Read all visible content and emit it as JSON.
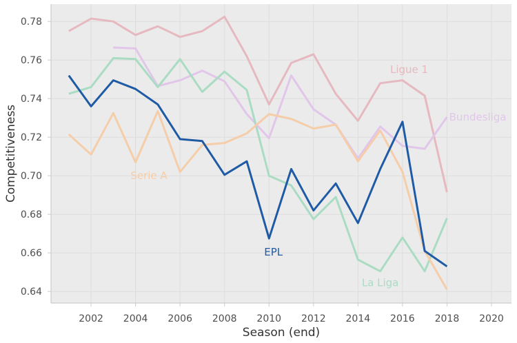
{
  "chart_data": {
    "type": "line",
    "xlabel": "Season (end)",
    "ylabel": "Competitiveness",
    "xlim": [
      2000.2,
      2020.9
    ],
    "ylim": [
      0.634,
      0.789
    ],
    "xticks": [
      2002,
      2004,
      2006,
      2008,
      2010,
      2012,
      2014,
      2016,
      2018,
      2020
    ],
    "yticks": [
      0.64,
      0.66,
      0.68,
      0.7,
      0.72,
      0.74,
      0.76,
      0.78
    ],
    "grid": true,
    "legend": "none",
    "series": [
      {
        "name": "Ligue 1",
        "color": "#e6b8bf",
        "x": [
          2001,
          2002,
          2003,
          2004,
          2005,
          2006,
          2007,
          2008,
          2009,
          2010,
          2011,
          2012,
          2013,
          2014,
          2015,
          2016,
          2017,
          2018
        ],
        "values": [
          0.775,
          0.7815,
          0.78,
          0.773,
          0.7775,
          0.772,
          0.775,
          0.7825,
          0.762,
          0.737,
          0.7585,
          0.763,
          0.7425,
          0.7285,
          0.748,
          0.7495,
          0.7415,
          0.6915
        ],
        "label_x": 2016.3,
        "label_y": 0.755
      },
      {
        "name": "Bundesliga",
        "color": "#e1c6ea",
        "x": [
          2003,
          2004,
          2005,
          2006,
          2007,
          2008,
          2009,
          2010,
          2011,
          2012,
          2013,
          2014,
          2015,
          2016,
          2017,
          2018
        ],
        "values": [
          0.7665,
          0.766,
          0.7465,
          0.7495,
          0.7545,
          0.749,
          0.732,
          0.7195,
          0.752,
          0.7345,
          0.7265,
          0.709,
          0.7255,
          0.7155,
          0.714,
          0.7305
        ],
        "label_x": 2018.1,
        "label_y": 0.7305
      },
      {
        "name": "La Liga",
        "color": "#a9dcc3",
        "x": [
          2001,
          2002,
          2003,
          2004,
          2005,
          2006,
          2007,
          2008,
          2009,
          2010,
          2011,
          2012,
          2013,
          2014,
          2015,
          2016,
          2017,
          2018
        ],
        "values": [
          0.7425,
          0.746,
          0.761,
          0.7605,
          0.746,
          0.7605,
          0.7435,
          0.754,
          0.7445,
          0.7,
          0.695,
          0.6775,
          0.689,
          0.6565,
          0.6505,
          0.668,
          0.6505,
          0.678
        ],
        "label_x": 2015.0,
        "label_y": 0.6445
      },
      {
        "name": "Serie A",
        "color": "#f5cda9",
        "x": [
          2001,
          2002,
          2003,
          2004,
          2005,
          2006,
          2007,
          2008,
          2009,
          2010,
          2011,
          2012,
          2013,
          2014,
          2015,
          2016,
          2017,
          2018
        ],
        "values": [
          0.7215,
          0.711,
          0.7325,
          0.707,
          0.7335,
          0.702,
          0.716,
          0.717,
          0.722,
          0.732,
          0.7295,
          0.7245,
          0.7265,
          0.7075,
          0.7235,
          0.702,
          0.661,
          0.641
        ],
        "label_x": 2004.6,
        "label_y": 0.7
      },
      {
        "name": "EPL",
        "color": "#1f5aa5",
        "x": [
          2001,
          2002,
          2003,
          2004,
          2005,
          2006,
          2007,
          2008,
          2009,
          2010,
          2011,
          2012,
          2013,
          2014,
          2015,
          2016,
          2017,
          2018
        ],
        "values": [
          0.752,
          0.736,
          0.7495,
          0.745,
          0.737,
          0.719,
          0.718,
          0.7005,
          0.7075,
          0.6675,
          0.7035,
          0.682,
          0.696,
          0.6755,
          0.7035,
          0.728,
          0.661,
          0.653
        ],
        "label_x": 2010.2,
        "label_y": 0.6605
      }
    ]
  }
}
